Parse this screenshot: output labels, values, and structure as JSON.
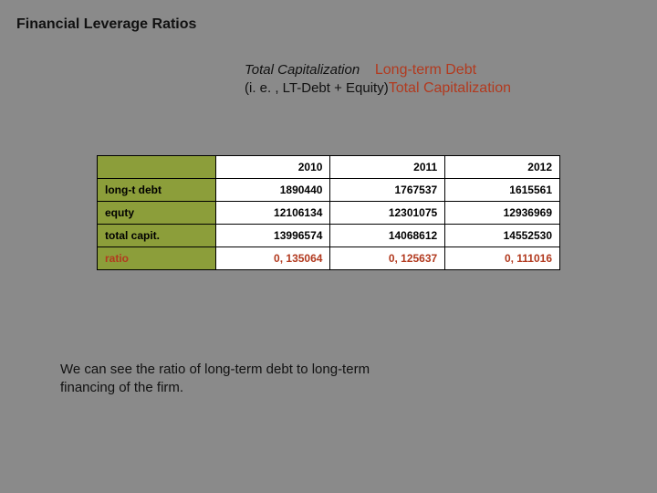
{
  "title": "Financial Leverage Ratios",
  "formula": {
    "line1_left": "Total Capitalization",
    "line1_right": "Long-term Debt",
    "line2_left": "(i. e. , LT-Debt + Equity)",
    "line2_right": "Total Capitalization"
  },
  "table": {
    "header_bg": "#8c9e3a",
    "border_color": "#000000",
    "cell_bg": "#ffffff",
    "ratio_color": "#b23a1f",
    "columns": [
      "",
      "2010",
      "2011",
      "2012"
    ],
    "rows": [
      {
        "label": "long-t debt",
        "values": [
          "1890440",
          "1767537",
          "1615561"
        ]
      },
      {
        "label": "equty",
        "values": [
          "12106134",
          "12301075",
          "12936969"
        ]
      },
      {
        "label": "total capit.",
        "values": [
          "13996574",
          "14068612",
          "14552530"
        ]
      }
    ],
    "ratio_row": {
      "label": "ratio",
      "values": [
        "0, 135064",
        "0, 125637",
        "0, 111016"
      ]
    }
  },
  "caption": "We can see the ratio of long-term debt to long-term financing of the firm.",
  "colors": {
    "page_bg": "#8a8a8a",
    "text": "#111111",
    "accent_red": "#b23a1f",
    "olive": "#8c9e3a"
  }
}
